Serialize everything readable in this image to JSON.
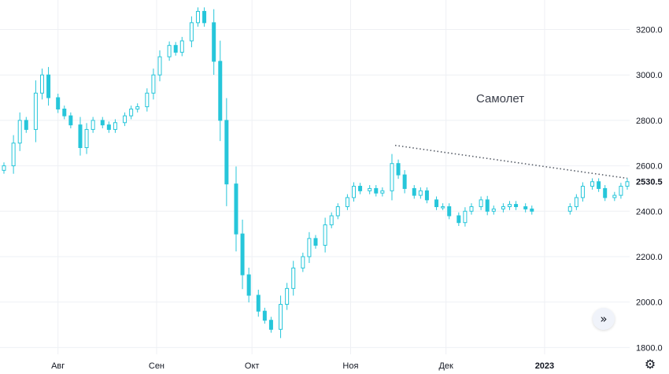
{
  "chart_data": {
    "type": "candlestick",
    "title": "Самолет",
    "ylim": [
      1770,
      3330
    ],
    "y_ticks": [
      1800,
      2000,
      2200,
      2400,
      2600,
      2800,
      3000,
      3200
    ],
    "y_tick_labels": [
      "1800.0",
      "2000.0",
      "2200.0",
      "2400.0",
      "2600.0",
      "2800.0",
      "3000.0",
      "3200.0"
    ],
    "x_range": [
      "2022-07-15",
      "2023-01-27"
    ],
    "x_ticks": [
      {
        "date": "2022-08-01",
        "label": "Авг"
      },
      {
        "date": "2022-09-01",
        "label": "Сен"
      },
      {
        "date": "2022-10-01",
        "label": "Окт"
      },
      {
        "date": "2022-11-01",
        "label": "Ноя"
      },
      {
        "date": "2022-12-01",
        "label": "Дек"
      },
      {
        "date": "2023-01-01",
        "label": "2023",
        "bold": true
      }
    ],
    "last_price": 2530.5,
    "last_price_label": "2530.5",
    "trendline": {
      "from": {
        "date": "2022-11-15",
        "value": 2690
      },
      "to": {
        "date": "2023-01-27",
        "value": 2545
      },
      "style": "dotted"
    },
    "grid": true,
    "candle_color": "#26c6da",
    "close_series": [
      [
        "2022-07-15",
        2600
      ],
      [
        "2022-07-18",
        2700
      ],
      [
        "2022-07-20",
        2800
      ],
      [
        "2022-07-22",
        2760
      ],
      [
        "2022-07-25",
        2920
      ],
      [
        "2022-07-27",
        3000
      ],
      [
        "2022-07-29",
        2900
      ],
      [
        "2022-08-01",
        2850
      ],
      [
        "2022-08-03",
        2820
      ],
      [
        "2022-08-05",
        2780
      ],
      [
        "2022-08-08",
        2680
      ],
      [
        "2022-08-10",
        2760
      ],
      [
        "2022-08-12",
        2800
      ],
      [
        "2022-08-15",
        2780
      ],
      [
        "2022-08-17",
        2760
      ],
      [
        "2022-08-19",
        2790
      ],
      [
        "2022-08-22",
        2820
      ],
      [
        "2022-08-24",
        2850
      ],
      [
        "2022-08-26",
        2860
      ],
      [
        "2022-08-29",
        2920
      ],
      [
        "2022-08-31",
        3000
      ],
      [
        "2022-09-02",
        3080
      ],
      [
        "2022-09-05",
        3130
      ],
      [
        "2022-09-07",
        3100
      ],
      [
        "2022-09-09",
        3150
      ],
      [
        "2022-09-12",
        3230
      ],
      [
        "2022-09-14",
        3280
      ],
      [
        "2022-09-16",
        3230
      ],
      [
        "2022-09-19",
        3060
      ],
      [
        "2022-09-21",
        2800
      ],
      [
        "2022-09-23",
        2520
      ],
      [
        "2022-09-26",
        2300
      ],
      [
        "2022-09-28",
        2120
      ],
      [
        "2022-09-30",
        2030
      ],
      [
        "2022-10-03",
        1960
      ],
      [
        "2022-10-05",
        1920
      ],
      [
        "2022-10-07",
        1880
      ],
      [
        "2022-10-10",
        1990
      ],
      [
        "2022-10-12",
        2060
      ],
      [
        "2022-10-14",
        2150
      ],
      [
        "2022-10-17",
        2200
      ],
      [
        "2022-10-19",
        2280
      ],
      [
        "2022-10-21",
        2250
      ],
      [
        "2022-10-24",
        2340
      ],
      [
        "2022-10-26",
        2380
      ],
      [
        "2022-10-28",
        2420
      ],
      [
        "2022-10-31",
        2460
      ],
      [
        "2022-11-02",
        2510
      ],
      [
        "2022-11-04",
        2490
      ],
      [
        "2022-11-07",
        2500
      ],
      [
        "2022-11-09",
        2480
      ],
      [
        "2022-11-11",
        2490
      ],
      [
        "2022-11-14",
        2610
      ],
      [
        "2022-11-16",
        2560
      ],
      [
        "2022-11-18",
        2500
      ],
      [
        "2022-11-21",
        2470
      ],
      [
        "2022-11-23",
        2490
      ],
      [
        "2022-11-25",
        2450
      ],
      [
        "2022-11-28",
        2420
      ],
      [
        "2022-11-30",
        2420
      ],
      [
        "2022-12-02",
        2380
      ],
      [
        "2022-12-05",
        2350
      ],
      [
        "2022-12-07",
        2400
      ],
      [
        "2022-12-09",
        2420
      ],
      [
        "2022-12-12",
        2450
      ],
      [
        "2022-12-14",
        2400
      ],
      [
        "2022-12-16",
        2410
      ],
      [
        "2022-12-19",
        2420
      ],
      [
        "2022-12-21",
        2430
      ],
      [
        "2022-12-23",
        2420
      ],
      [
        "2022-12-26",
        2410
      ],
      [
        "2022-12-28",
        2400
      ],
      [
        "2023-01-09",
        2420
      ],
      [
        "2023-01-11",
        2460
      ],
      [
        "2023-01-13",
        2510
      ],
      [
        "2023-01-16",
        2530
      ],
      [
        "2023-01-18",
        2500
      ],
      [
        "2023-01-20",
        2460
      ],
      [
        "2023-01-23",
        2470
      ],
      [
        "2023-01-25",
        2510
      ],
      [
        "2023-01-27",
        2530
      ]
    ]
  },
  "controls": {
    "scroll_icon": "double-chevron-right-icon",
    "scroll_glyph": "»",
    "settings_icon": "gear-icon",
    "settings_glyph": "⚙"
  }
}
